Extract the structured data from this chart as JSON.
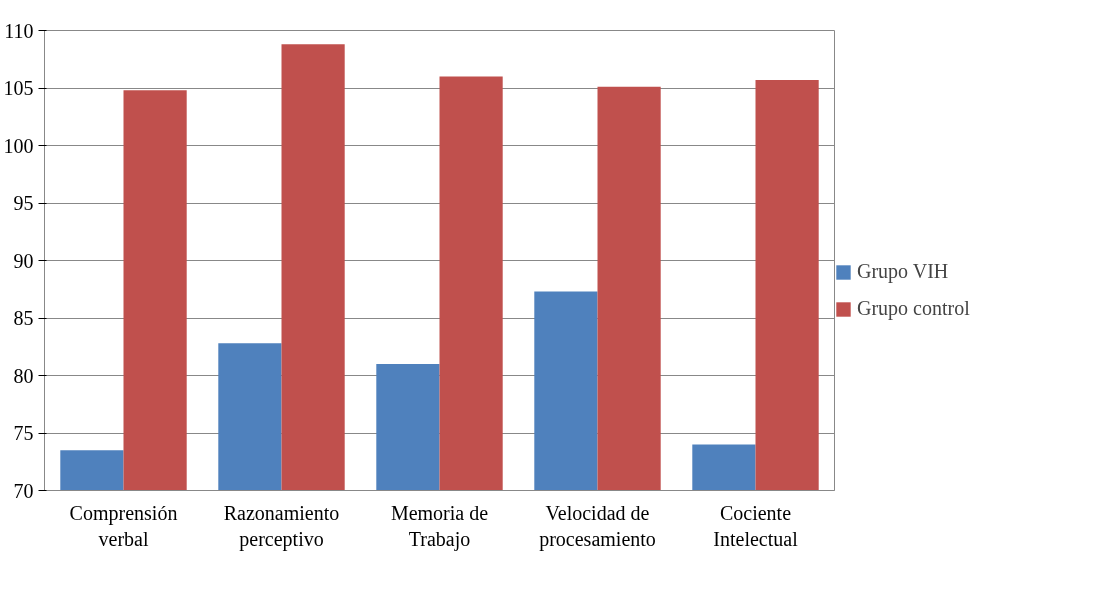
{
  "chart_data": {
    "type": "bar",
    "categories": [
      "Comprensión verbal",
      "Razonamiento perceptivo",
      "Memoria de Trabajo",
      "Velocidad de procesamiento",
      "Cociente Intelectual"
    ],
    "series": [
      {
        "name": "Grupo VIH",
        "color": "#4f81bd",
        "values": [
          73.5,
          82.8,
          81.0,
          87.3,
          74.0
        ]
      },
      {
        "name": "Grupo control",
        "color": "#c0504d",
        "values": [
          104.8,
          108.8,
          106.0,
          105.1,
          105.7
        ]
      }
    ],
    "ylim": [
      70,
      110
    ],
    "yticks": [
      70,
      75,
      80,
      85,
      90,
      95,
      100,
      105,
      110
    ],
    "grid": "y",
    "legend": "right"
  }
}
